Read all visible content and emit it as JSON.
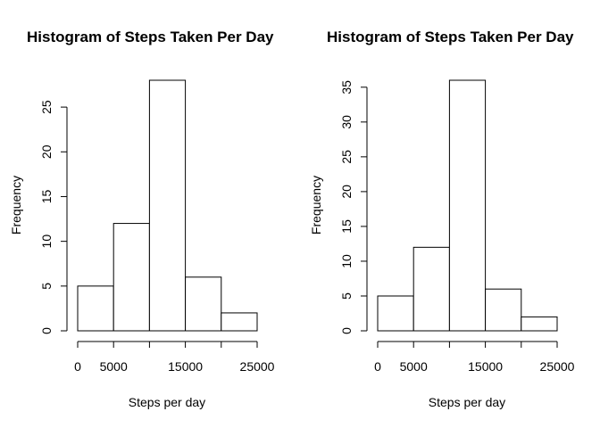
{
  "chart_data": [
    {
      "type": "bar",
      "title": "Histogram of Steps Taken Per Day",
      "xlabel": "Steps per day",
      "ylabel": "Frequency",
      "bins": [
        [
          0,
          5000
        ],
        [
          5000,
          10000
        ],
        [
          10000,
          15000
        ],
        [
          15000,
          20000
        ],
        [
          20000,
          25000
        ]
      ],
      "values": [
        5,
        12,
        28,
        6,
        2
      ],
      "xticks": [
        0,
        5000,
        15000,
        25000
      ],
      "yticks": [
        0,
        5,
        10,
        15,
        20,
        25
      ],
      "xlim": [
        0,
        25000
      ],
      "ylim": [
        0,
        28
      ],
      "grid": false,
      "bar_fill": "#ffffff",
      "bar_stroke": "#000000"
    },
    {
      "type": "bar",
      "title": "Histogram of Steps Taken Per Day",
      "xlabel": "Steps per day",
      "ylabel": "Frequency",
      "bins": [
        [
          0,
          5000
        ],
        [
          5000,
          10000
        ],
        [
          10000,
          15000
        ],
        [
          15000,
          20000
        ],
        [
          20000,
          25000
        ]
      ],
      "values": [
        5,
        12,
        36,
        6,
        2
      ],
      "xticks": [
        0,
        5000,
        15000,
        25000
      ],
      "yticks": [
        0,
        5,
        10,
        15,
        20,
        25,
        30,
        35
      ],
      "xlim": [
        0,
        25000
      ],
      "ylim": [
        0,
        36
      ],
      "grid": false,
      "bar_fill": "#ffffff",
      "bar_stroke": "#000000"
    }
  ]
}
